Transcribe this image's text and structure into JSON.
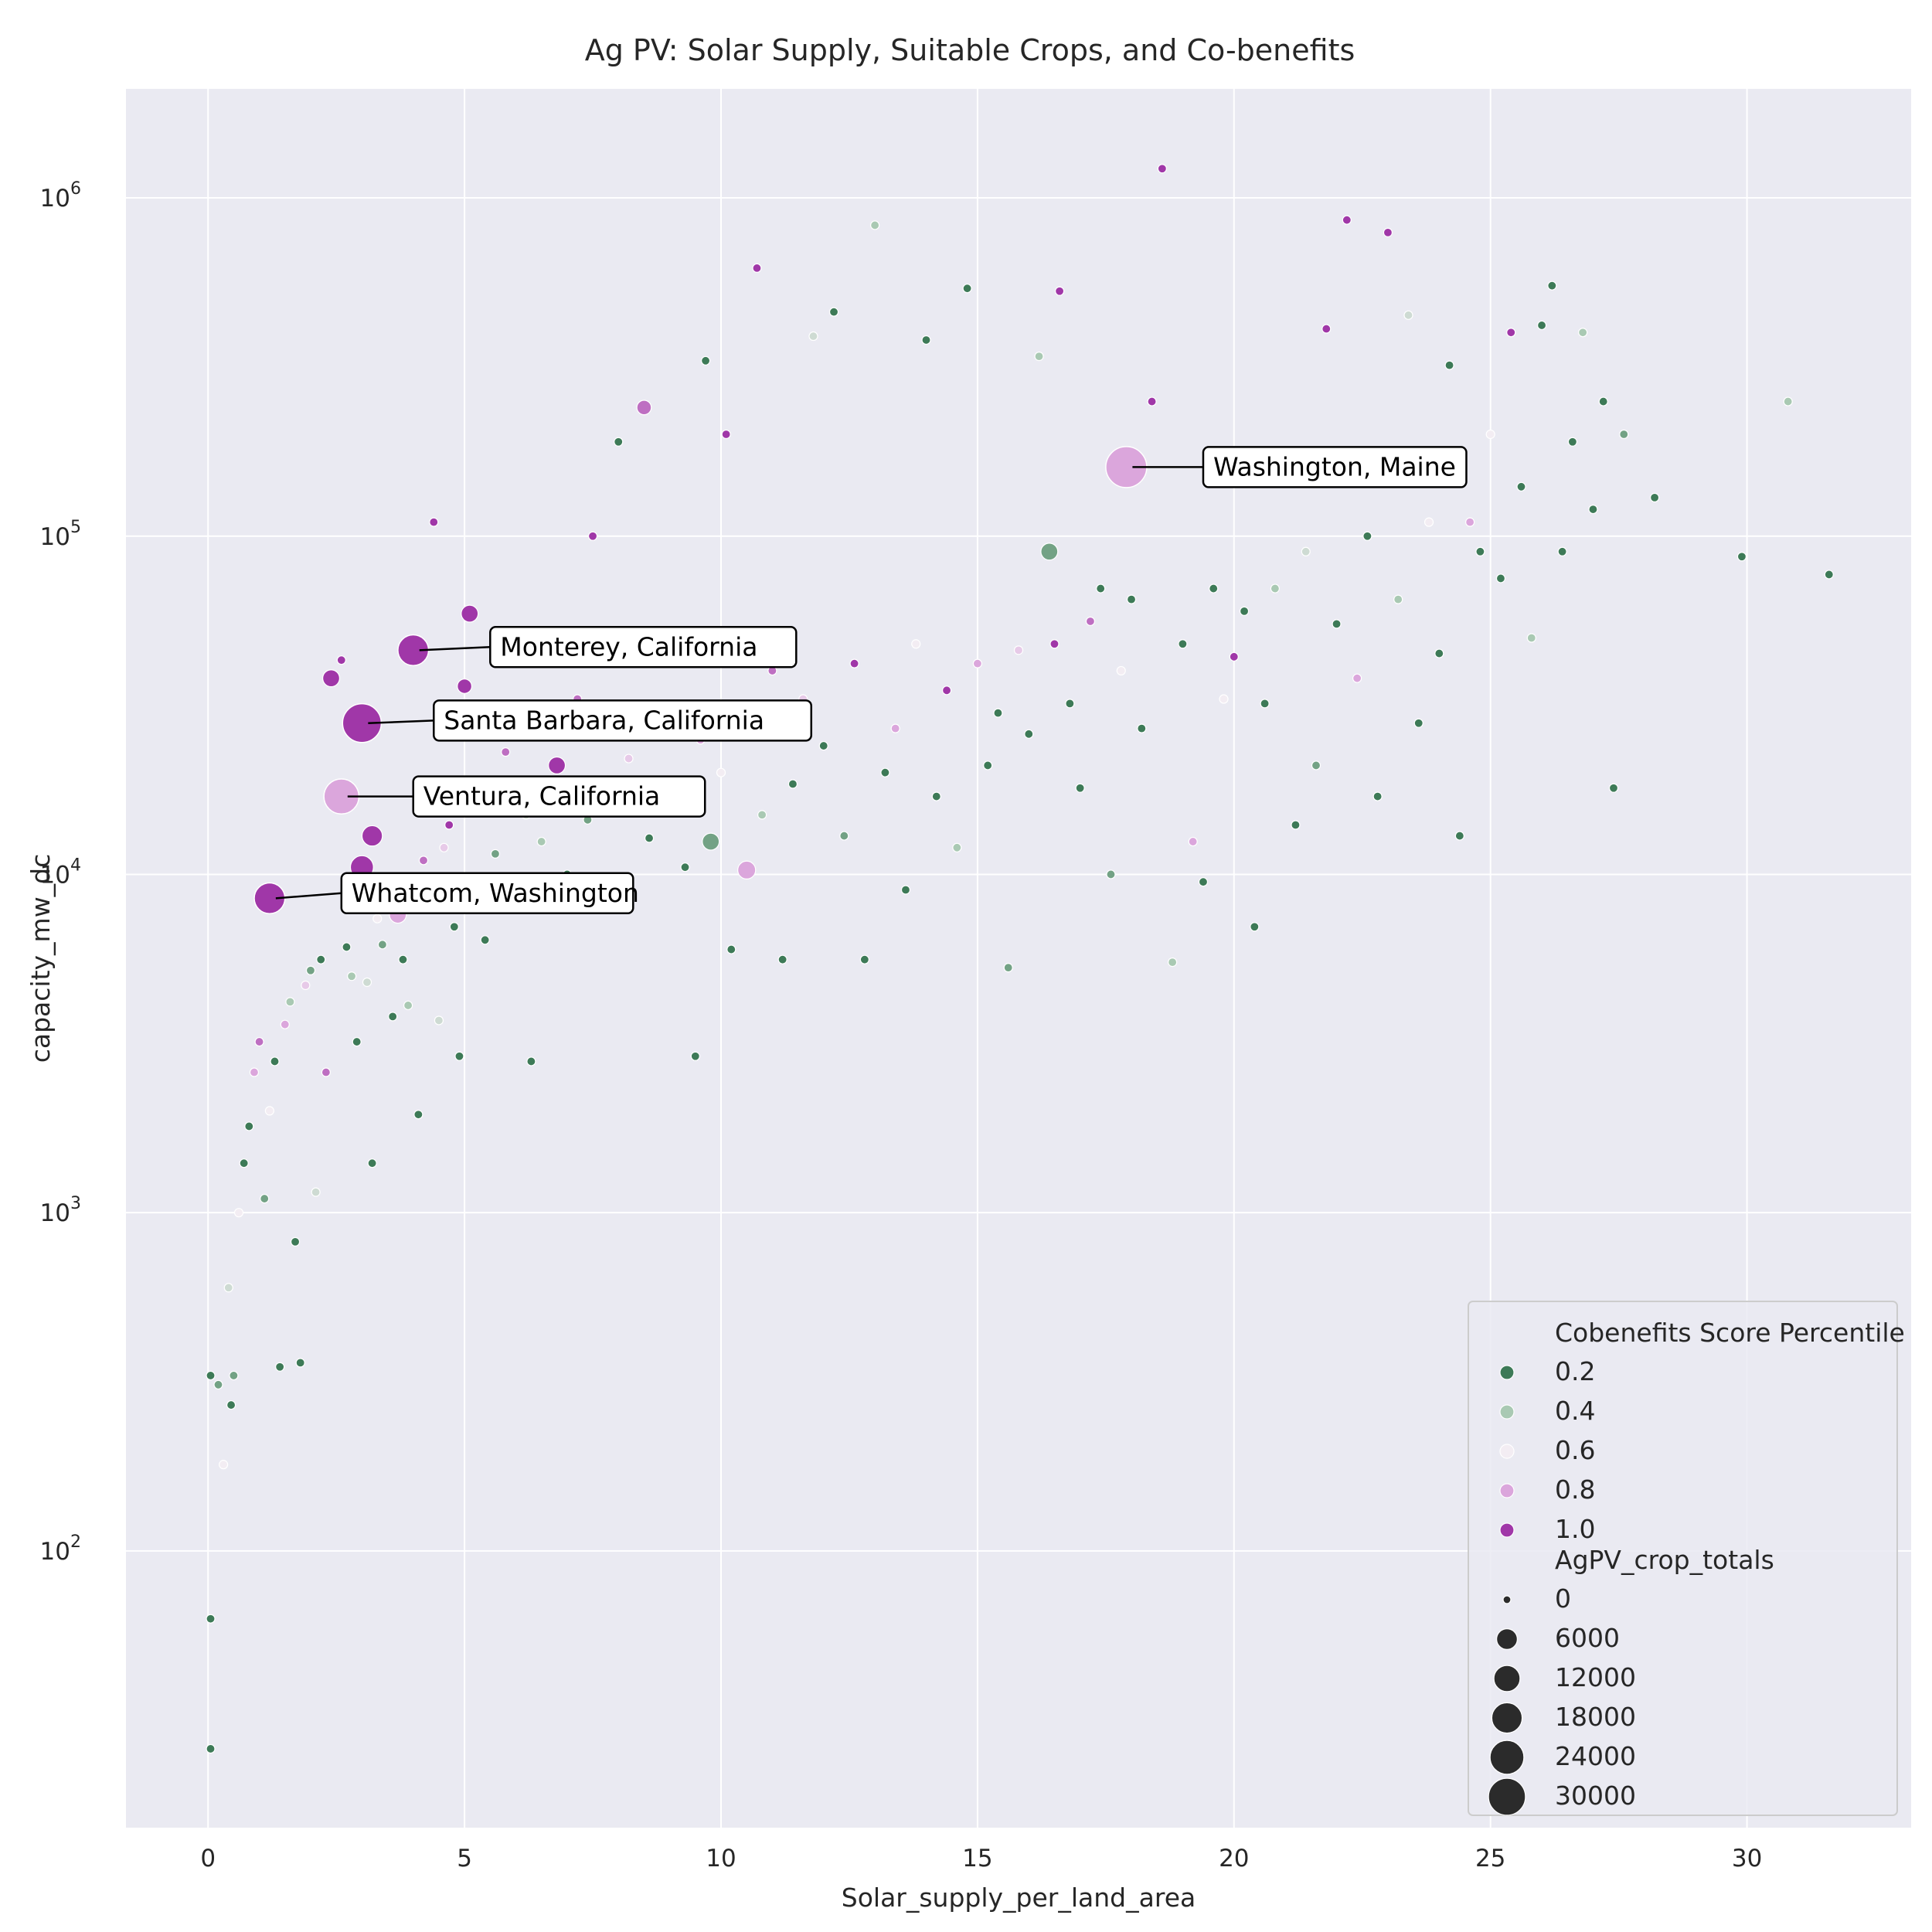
{
  "chart_data": {
    "type": "scatter",
    "title": "Ag PV: Solar Supply, Suitable Crops, and Co-benefits",
    "xlabel": "Solar_supply_per_land_area",
    "ylabel": "capacity_mw_dc",
    "xlim": [
      -1.6,
      33.2
    ],
    "ylim": [
      15.2,
      2100000
    ],
    "yscale": "log",
    "grid": true,
    "x_ticks": [
      0,
      5,
      10,
      15,
      20,
      25,
      30
    ],
    "y_ticks": [
      {
        "value": 100,
        "base": "10",
        "exp": "2"
      },
      {
        "value": 1000,
        "base": "10",
        "exp": "3"
      },
      {
        "value": 10000,
        "base": "10",
        "exp": "4"
      },
      {
        "value": 100000,
        "base": "10",
        "exp": "5"
      },
      {
        "value": 1000000,
        "base": "10",
        "exp": "6"
      }
    ],
    "color_scale": [
      "#3d7a57",
      "#a9c9b3",
      "#f3edf3",
      "#dba6dc",
      "#a037a8"
    ],
    "hue_legend": {
      "title": "Cobenefits Score Percentile",
      "entries": [
        {
          "label": "0.2",
          "value": 0.2
        },
        {
          "label": "0.4",
          "value": 0.4
        },
        {
          "label": "0.6",
          "value": 0.6
        },
        {
          "label": "0.8",
          "value": 0.8
        },
        {
          "label": "1.0",
          "value": 1.0
        }
      ]
    },
    "size_legend": {
      "title": "AgPV_crop_totals",
      "entries": [
        {
          "label": "0",
          "value": 0
        },
        {
          "label": "6000",
          "value": 6000
        },
        {
          "label": "12000",
          "value": 12000
        },
        {
          "label": "18000",
          "value": 18000
        },
        {
          "label": "24000",
          "value": 24000
        },
        {
          "label": "30000",
          "value": 30000
        }
      ]
    },
    "legend_position": "lower-right",
    "highlighted": [
      {
        "name": "Washington, Maine",
        "x": 17.9,
        "y": 160000,
        "cobenefit": 0.8,
        "crops": 30000,
        "label_x": 19.4,
        "label_y": 160000
      },
      {
        "name": "Monterey, California",
        "x": 4.0,
        "y": 46000,
        "cobenefit": 1.0,
        "crops": 14000,
        "label_x": 5.5,
        "label_y": 47000
      },
      {
        "name": "Santa Barbara, California",
        "x": 3.0,
        "y": 28000,
        "cobenefit": 1.0,
        "crops": 26000,
        "label_x": 4.4,
        "label_y": 28500
      },
      {
        "name": "Ventura, California",
        "x": 2.6,
        "y": 17000,
        "cobenefit": 0.8,
        "crops": 20000,
        "label_x": 4.0,
        "label_y": 17000
      },
      {
        "name": "Whatcom, Washington",
        "x": 1.2,
        "y": 8500,
        "cobenefit": 1.0,
        "crops": 14000,
        "label_x": 2.6,
        "label_y": 8800
      }
    ],
    "points": [
      [
        0.05,
        26,
        0.1,
        0
      ],
      [
        0.05,
        63,
        0.1,
        0
      ],
      [
        0.05,
        330,
        0.2,
        0
      ],
      [
        0.2,
        310,
        0.3,
        0
      ],
      [
        0.3,
        180,
        0.6,
        0
      ],
      [
        0.45,
        270,
        0.2,
        0
      ],
      [
        0.5,
        330,
        0.3,
        0
      ],
      [
        0.4,
        600,
        0.5,
        0
      ],
      [
        0.6,
        1000,
        0.6,
        0
      ],
      [
        0.7,
        1400,
        0.1,
        0
      ],
      [
        0.8,
        1800,
        0.2,
        0
      ],
      [
        0.9,
        2600,
        0.8,
        0
      ],
      [
        1.0,
        3200,
        0.9,
        0
      ],
      [
        1.1,
        1100,
        0.3,
        0
      ],
      [
        1.2,
        2000,
        0.6,
        0
      ],
      [
        1.3,
        2800,
        0.1,
        0
      ],
      [
        1.4,
        350,
        0.2,
        0
      ],
      [
        1.5,
        3600,
        0.8,
        0
      ],
      [
        1.6,
        4200,
        0.4,
        0
      ],
      [
        1.7,
        820,
        0.1,
        0
      ],
      [
        1.8,
        360,
        0.1,
        0
      ],
      [
        1.9,
        4700,
        0.7,
        0
      ],
      [
        2.0,
        5200,
        0.3,
        0
      ],
      [
        2.1,
        1150,
        0.5,
        0
      ],
      [
        2.2,
        5600,
        0.1,
        0
      ],
      [
        2.3,
        2600,
        0.9,
        0
      ],
      [
        2.4,
        38000,
        1.0,
        2000
      ],
      [
        2.5,
        16000,
        0.9,
        1000
      ],
      [
        2.6,
        43000,
        1.0,
        0
      ],
      [
        2.7,
        6100,
        0.2,
        0
      ],
      [
        2.8,
        5000,
        0.4,
        0
      ],
      [
        2.9,
        3200,
        0.2,
        0
      ],
      [
        3.0,
        10500,
        1.0,
        6000
      ],
      [
        3.1,
        4800,
        0.5,
        0
      ],
      [
        3.2,
        1400,
        0.1,
        0
      ],
      [
        3.2,
        13000,
        1.0,
        4000
      ],
      [
        3.3,
        7400,
        0.6,
        0
      ],
      [
        3.4,
        6200,
        0.3,
        0
      ],
      [
        3.5,
        9000,
        0.7,
        0
      ],
      [
        3.6,
        3800,
        0.1,
        0
      ],
      [
        3.7,
        7600,
        0.8,
        2000
      ],
      [
        3.8,
        5600,
        0.2,
        0
      ],
      [
        3.9,
        4100,
        0.4,
        0
      ],
      [
        4.0,
        9500,
        0.2,
        0
      ],
      [
        4.1,
        1950,
        0.1,
        0
      ],
      [
        4.2,
        11000,
        0.9,
        0
      ],
      [
        4.3,
        8600,
        0.3,
        0
      ],
      [
        4.4,
        110000,
        1.0,
        0
      ],
      [
        4.5,
        3700,
        0.5,
        0
      ],
      [
        4.6,
        12000,
        0.7,
        0
      ],
      [
        4.7,
        14000,
        1.0,
        0
      ],
      [
        4.8,
        7000,
        0.2,
        0
      ],
      [
        4.9,
        2900,
        0.1,
        0
      ],
      [
        5.0,
        36000,
        1.0,
        1000
      ],
      [
        5.1,
        59000,
        1.0,
        2000
      ],
      [
        5.2,
        9800,
        0.4,
        0
      ],
      [
        5.3,
        16000,
        0.8,
        0
      ],
      [
        5.4,
        6400,
        0.1,
        0
      ],
      [
        5.5,
        18000,
        0.6,
        0
      ],
      [
        5.6,
        11500,
        0.3,
        0
      ],
      [
        5.8,
        23000,
        0.9,
        0
      ],
      [
        6.0,
        8800,
        0.2,
        0
      ],
      [
        6.2,
        15000,
        0.5,
        0
      ],
      [
        6.3,
        2800,
        0.1,
        0
      ],
      [
        6.4,
        26000,
        1.0,
        0
      ],
      [
        6.5,
        12500,
        0.4,
        0
      ],
      [
        6.7,
        19000,
        0.8,
        0
      ],
      [
        6.8,
        21000,
        1.0,
        2000
      ],
      [
        7.0,
        10000,
        0.2,
        0
      ],
      [
        7.2,
        33000,
        0.9,
        0
      ],
      [
        7.4,
        14500,
        0.3,
        0
      ],
      [
        7.5,
        100000,
        1.0,
        0
      ],
      [
        7.6,
        8300,
        0.6,
        0
      ],
      [
        7.8,
        17000,
        0.1,
        0
      ],
      [
        8.0,
        190000,
        0.2,
        0
      ],
      [
        8.2,
        22000,
        0.7,
        0
      ],
      [
        8.5,
        240000,
        0.9,
        1000
      ],
      [
        8.6,
        12800,
        0.2,
        0
      ],
      [
        8.8,
        30000,
        1.0,
        0
      ],
      [
        9.0,
        16500,
        0.4,
        0
      ],
      [
        9.3,
        10500,
        0.1,
        0
      ],
      [
        9.5,
        2900,
        0.1,
        0
      ],
      [
        9.6,
        25000,
        0.8,
        0
      ],
      [
        9.7,
        330000,
        0.2,
        0
      ],
      [
        9.8,
        12500,
        0.3,
        2000
      ],
      [
        10.0,
        20000,
        0.6,
        0
      ],
      [
        10.1,
        200000,
        1.0,
        0
      ],
      [
        10.2,
        6000,
        0.2,
        0
      ],
      [
        10.5,
        10300,
        0.8,
        2500
      ],
      [
        10.6,
        28000,
        0.2,
        0
      ],
      [
        10.7,
        620000,
        1.0,
        0
      ],
      [
        10.8,
        15000,
        0.4,
        0
      ],
      [
        11.0,
        40000,
        0.9,
        0
      ],
      [
        11.2,
        5600,
        0.1,
        0
      ],
      [
        11.4,
        18500,
        0.2,
        0
      ],
      [
        11.6,
        33000,
        0.7,
        0
      ],
      [
        11.8,
        390000,
        0.5,
        0
      ],
      [
        12.0,
        24000,
        0.1,
        0
      ],
      [
        12.2,
        460000,
        0.2,
        0
      ],
      [
        12.4,
        13000,
        0.3,
        0
      ],
      [
        12.6,
        42000,
        1.0,
        0
      ],
      [
        12.8,
        5600,
        0.1,
        0
      ],
      [
        13.0,
        830000,
        0.4,
        0
      ],
      [
        13.2,
        20000,
        0.2,
        0
      ],
      [
        13.4,
        27000,
        0.8,
        0
      ],
      [
        13.6,
        9000,
        0.1,
        0
      ],
      [
        13.8,
        48000,
        0.6,
        0
      ],
      [
        14.0,
        380000,
        0.2,
        0
      ],
      [
        14.2,
        17000,
        0.2,
        0
      ],
      [
        14.4,
        35000,
        1.0,
        0
      ],
      [
        14.6,
        12000,
        0.4,
        0
      ],
      [
        14.8,
        540000,
        0.2,
        0
      ],
      [
        15.0,
        42000,
        0.8,
        0
      ],
      [
        15.2,
        21000,
        0.2,
        0
      ],
      [
        15.4,
        30000,
        0.1,
        0
      ],
      [
        15.6,
        5300,
        0.3,
        0
      ],
      [
        15.8,
        46000,
        0.7,
        0
      ],
      [
        16.0,
        26000,
        0.2,
        0
      ],
      [
        16.2,
        340000,
        0.4,
        0
      ],
      [
        16.4,
        90000,
        0.3,
        2000
      ],
      [
        16.5,
        48000,
        1.0,
        0
      ],
      [
        16.6,
        530000,
        1.0,
        0
      ],
      [
        16.8,
        32000,
        0.2,
        0
      ],
      [
        17.0,
        18000,
        0.1,
        0
      ],
      [
        17.2,
        56000,
        0.9,
        0
      ],
      [
        17.4,
        70000,
        0.2,
        0
      ],
      [
        17.6,
        10000,
        0.3,
        0
      ],
      [
        17.8,
        40000,
        0.6,
        0
      ],
      [
        18.0,
        65000,
        0.2,
        0
      ],
      [
        18.2,
        27000,
        0.1,
        0
      ],
      [
        18.4,
        250000,
        1.0,
        0
      ],
      [
        18.6,
        1220000,
        1.0,
        0
      ],
      [
        18.8,
        5500,
        0.4,
        0
      ],
      [
        19.0,
        48000,
        0.2,
        0
      ],
      [
        19.2,
        12500,
        0.8,
        0
      ],
      [
        19.4,
        9500,
        0.1,
        0
      ],
      [
        19.6,
        70000,
        0.2,
        0
      ],
      [
        19.8,
        33000,
        0.6,
        0
      ],
      [
        20.0,
        44000,
        1.0,
        0
      ],
      [
        20.2,
        60000,
        0.2,
        0
      ],
      [
        20.4,
        7000,
        0.1,
        0
      ],
      [
        20.6,
        32000,
        0.1,
        0
      ],
      [
        20.8,
        70000,
        0.4,
        0
      ],
      [
        21.0,
        150000,
        0.2,
        0
      ],
      [
        21.2,
        14000,
        0.1,
        0
      ],
      [
        21.4,
        90000,
        0.5,
        0
      ],
      [
        21.6,
        21000,
        0.3,
        0
      ],
      [
        21.8,
        410000,
        1.0,
        0
      ],
      [
        22.0,
        55000,
        0.2,
        0
      ],
      [
        22.2,
        860000,
        1.0,
        0
      ],
      [
        22.4,
        38000,
        0.8,
        0
      ],
      [
        22.6,
        100000,
        0.2,
        0
      ],
      [
        22.8,
        17000,
        0.2,
        0
      ],
      [
        23.0,
        790000,
        1.0,
        0
      ],
      [
        23.2,
        65000,
        0.4,
        0
      ],
      [
        23.4,
        450000,
        0.5,
        0
      ],
      [
        23.6,
        28000,
        0.2,
        0
      ],
      [
        23.8,
        110000,
        0.6,
        0
      ],
      [
        24.0,
        45000,
        0.1,
        0
      ],
      [
        24.2,
        320000,
        0.2,
        0
      ],
      [
        24.4,
        13000,
        0.1,
        0
      ],
      [
        24.6,
        110000,
        0.8,
        0
      ],
      [
        24.8,
        90000,
        0.2,
        0
      ],
      [
        25.0,
        200000,
        0.6,
        0
      ],
      [
        25.2,
        75000,
        0.1,
        0
      ],
      [
        25.4,
        400000,
        1.0,
        0
      ],
      [
        25.6,
        140000,
        0.2,
        0
      ],
      [
        25.8,
        50000,
        0.4,
        0
      ],
      [
        26.0,
        420000,
        0.2,
        0
      ],
      [
        26.2,
        550000,
        0.2,
        0
      ],
      [
        26.4,
        90000,
        0.1,
        0
      ],
      [
        26.6,
        190000,
        0.2,
        0
      ],
      [
        26.8,
        400000,
        0.4,
        0
      ],
      [
        27.0,
        120000,
        0.2,
        0
      ],
      [
        27.2,
        250000,
        0.1,
        0
      ],
      [
        27.4,
        18000,
        0.1,
        0
      ],
      [
        27.6,
        200000,
        0.3,
        0
      ],
      [
        28.2,
        130000,
        0.2,
        0
      ],
      [
        29.9,
        87000,
        0.1,
        0
      ],
      [
        30.8,
        250000,
        0.4,
        0
      ],
      [
        31.6,
        77000,
        0.2,
        0
      ]
    ]
  }
}
